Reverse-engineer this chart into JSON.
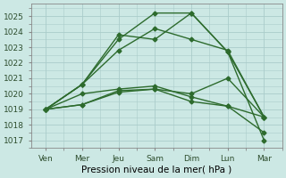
{
  "xlabel": "Pression niveau de la mer( hPa )",
  "x_labels": [
    "Ven",
    "Mer",
    "Jeu",
    "Sam",
    "Dim",
    "Lun",
    "Mar"
  ],
  "x_ticks": [
    0,
    1,
    2,
    3,
    4,
    5,
    6
  ],
  "ylim": [
    1016.5,
    1025.8
  ],
  "yticks": [
    1017,
    1018,
    1019,
    1020,
    1021,
    1022,
    1023,
    1024,
    1025
  ],
  "bg_color": "#cce8e4",
  "grid_color": "#aaccca",
  "line_color": "#2d6b2d",
  "series": [
    [
      1019.0,
      1020.6,
      1023.5,
      1025.2,
      1025.2,
      1022.7,
      1017.0
    ],
    [
      1019.0,
      1020.6,
      1023.8,
      1023.5,
      1025.2,
      1022.7,
      1018.5
    ],
    [
      1019.0,
      1020.6,
      1022.8,
      1024.2,
      1023.5,
      1022.8,
      1018.5
    ],
    [
      1019.0,
      1019.3,
      1020.1,
      1020.3,
      1020.0,
      1021.0,
      1018.5
    ],
    [
      1019.0,
      1020.0,
      1020.3,
      1020.5,
      1019.8,
      1019.2,
      1018.5
    ],
    [
      1019.0,
      1019.3,
      1020.2,
      1020.3,
      1019.5,
      1019.2,
      1017.5
    ]
  ],
  "marker": "D",
  "markersize": 2.5,
  "linewidth": 1.0
}
